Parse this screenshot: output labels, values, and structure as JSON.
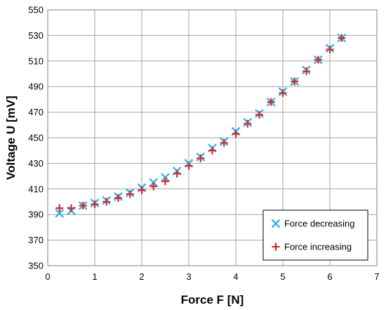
{
  "chart_data": {
    "type": "scatter",
    "title": "",
    "xlabel": "Force F [N]",
    "ylabel": "Voltage U [mV]",
    "xlim": [
      0,
      7
    ],
    "ylim": [
      350,
      550
    ],
    "xticks": [
      0,
      1,
      2,
      3,
      4,
      5,
      6,
      7
    ],
    "yticks": [
      350,
      370,
      390,
      410,
      430,
      450,
      470,
      490,
      510,
      530,
      550
    ],
    "grid": true,
    "legend_position": "bottom-right",
    "series": [
      {
        "name": "Force decreasing",
        "marker": "x",
        "color": "#33b5e5",
        "x": [
          0.25,
          0.5,
          0.75,
          1.0,
          1.25,
          1.5,
          1.75,
          2.0,
          2.25,
          2.5,
          2.75,
          3.0,
          3.25,
          3.5,
          3.75,
          4.0,
          4.25,
          4.5,
          4.75,
          5.0,
          5.25,
          5.5,
          5.75,
          6.0,
          6.25
        ],
        "y": [
          391,
          393,
          397,
          399,
          401,
          404,
          407,
          411,
          415,
          419,
          424,
          430,
          435,
          442,
          447,
          455,
          462,
          469,
          478,
          486,
          494,
          503,
          511,
          520,
          528
        ]
      },
      {
        "name": "Force increasing",
        "marker": "+",
        "color": "#d9262b",
        "x": [
          0.25,
          0.5,
          0.75,
          1.0,
          1.25,
          1.5,
          1.75,
          2.0,
          2.25,
          2.5,
          2.75,
          3.0,
          3.25,
          3.5,
          3.75,
          4.0,
          4.25,
          4.5,
          4.75,
          5.0,
          5.25,
          5.5,
          5.75,
          6.0,
          6.25
        ],
        "y": [
          395,
          395,
          397,
          398,
          400,
          403,
          406,
          409,
          412,
          416,
          422,
          428,
          434,
          440,
          446,
          453,
          461,
          468,
          478,
          485,
          494,
          502,
          511,
          519,
          528
        ]
      }
    ]
  }
}
